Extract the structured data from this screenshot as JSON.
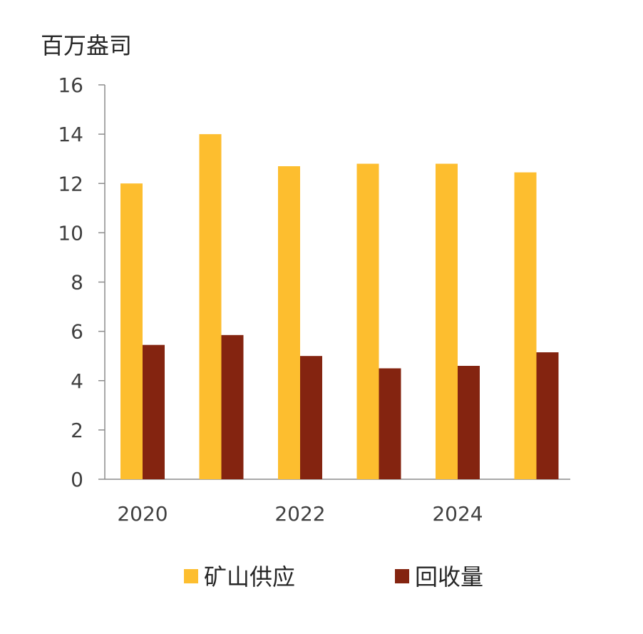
{
  "chart_data": {
    "type": "bar",
    "ylabel": "百万盎司",
    "ylim": [
      0,
      16
    ],
    "yticks": [
      0,
      2,
      4,
      6,
      8,
      10,
      12,
      14,
      16
    ],
    "x": [
      2020,
      2021,
      2022,
      2023,
      2024,
      2025
    ],
    "x_tick_labels": [
      "2020",
      "",
      "2022",
      "",
      "2024",
      ""
    ],
    "series": [
      {
        "name": "矿山供应",
        "color": "#FDBE2F",
        "values": [
          12.0,
          14.0,
          12.7,
          12.8,
          12.8,
          12.45
        ]
      },
      {
        "name": "回收量",
        "color": "#842410",
        "values": [
          5.45,
          5.85,
          5.0,
          4.5,
          4.6,
          5.15
        ]
      }
    ],
    "grid": false,
    "legend_position": "bottom"
  }
}
